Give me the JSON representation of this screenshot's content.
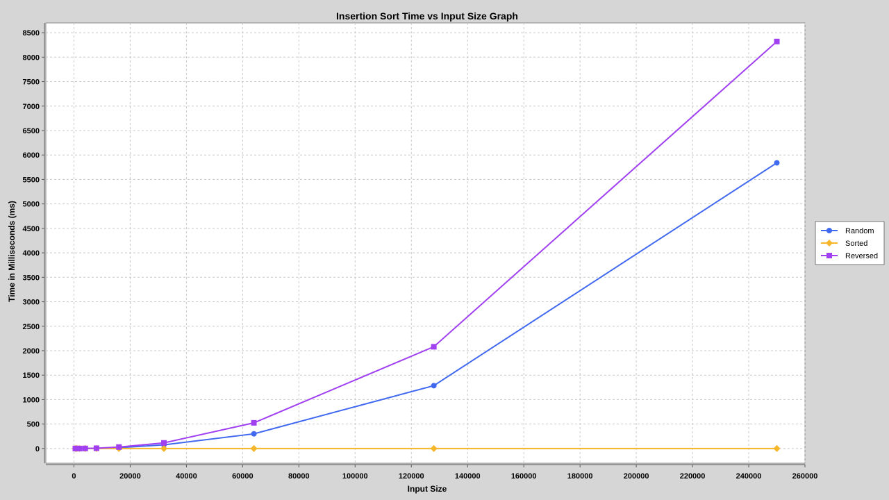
{
  "chart_data": {
    "type": "line",
    "title": "Insertion Sort Time vs Input Size Graph",
    "xlabel": "Input Size",
    "ylabel": "Time in Milliseconds (ms)",
    "xlim": [
      -10000,
      260000
    ],
    "ylim": [
      -300,
      8700
    ],
    "x_ticks": [
      0,
      20000,
      40000,
      60000,
      80000,
      100000,
      120000,
      140000,
      160000,
      180000,
      200000,
      220000,
      240000,
      260000
    ],
    "y_ticks": [
      0,
      500,
      1000,
      1500,
      2000,
      2500,
      3000,
      3500,
      4000,
      4500,
      5000,
      5500,
      6000,
      6500,
      7000,
      7500,
      8000,
      8500
    ],
    "grid": true,
    "legend_position": "right",
    "x": [
      500,
      1000,
      2000,
      4000,
      8000,
      16000,
      32000,
      64000,
      128000,
      250000
    ],
    "series": [
      {
        "name": "Random",
        "color": "#4169f0",
        "marker": "circle",
        "values": [
          0,
          0,
          0,
          1,
          4,
          18,
          75,
          300,
          1285,
          5840
        ]
      },
      {
        "name": "Sorted",
        "color": "#f5b62a",
        "marker": "diamond",
        "values": [
          0,
          0,
          0,
          0,
          0,
          0,
          0,
          0,
          0,
          0
        ]
      },
      {
        "name": "Reversed",
        "color": "#a040f0",
        "marker": "square",
        "values": [
          0,
          0,
          0,
          2,
          6,
          30,
          115,
          525,
          2080,
          8320
        ]
      }
    ]
  }
}
